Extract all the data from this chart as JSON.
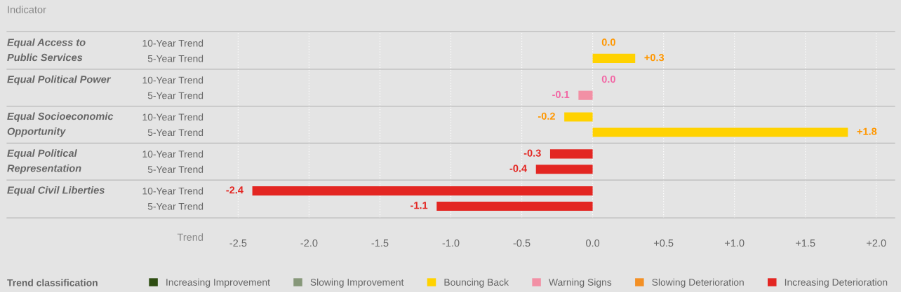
{
  "chart_data": {
    "type": "bar",
    "orientation": "horizontal",
    "xlabel": "Trend",
    "legend_title": "Trend classification",
    "legend": "bottom",
    "categories": [
      "10-Year Trend",
      "5-Year Trend",
      "10-Year Trend",
      "5-Year Trend",
      "10-Year Trend",
      "5-Year Trend",
      "10-Year Trend",
      "5-Year Trend",
      "10-Year Trend",
      "5-Year Trend"
    ],
    "annotations": [
      "Indicator",
      "Equal Access to\nPublic Services",
      "Equal Political Power",
      "Equal Socioeconomic\nOpportunity",
      "Equal Political\nRepresentation",
      "Equal Civil Liberties"
    ],
    "series": [
      {
        "name": "Increasing Improvement",
        "color": "#2e4d12",
        "values": [
          null,
          null,
          null,
          null,
          null,
          null,
          null,
          null,
          null,
          null
        ]
      },
      {
        "name": "Slowing Improvement",
        "color": "#87987a",
        "values": [
          null,
          null,
          null,
          null,
          null,
          null,
          null,
          null,
          null,
          null
        ]
      },
      {
        "name": "Bouncing Back",
        "color": "#ffd200",
        "values": [
          0.0,
          0.3,
          null,
          null,
          -0.2,
          1.8,
          null,
          null,
          null,
          null
        ],
        "value_labels": [
          "0.0",
          "+0.3",
          null,
          null,
          "-0.2",
          "+1.8",
          null,
          null,
          null,
          null
        ]
      },
      {
        "name": "Warning Signs",
        "color": "#f290a5",
        "values": [
          null,
          null,
          0.0,
          -0.1,
          null,
          null,
          null,
          null,
          null,
          null
        ],
        "value_labels": [
          null,
          null,
          "0.0",
          "-0.1",
          null,
          null,
          null,
          null,
          null,
          null
        ]
      },
      {
        "name": "Slowing Deterioration",
        "color": "#f39025",
        "values": [
          null,
          null,
          null,
          null,
          null,
          null,
          null,
          null,
          null,
          null
        ]
      },
      {
        "name": "Increasing Deterioration",
        "color": "#e32622",
        "values": [
          null,
          null,
          null,
          null,
          null,
          null,
          -0.3,
          -0.4,
          -2.4,
          -1.1
        ],
        "value_labels": [
          null,
          null,
          null,
          null,
          null,
          null,
          "-0.3",
          "-0.4",
          "-2.4",
          "-1.1"
        ]
      }
    ],
    "xlim": [
      -4.13,
      2.13
    ],
    "xticks": [
      {
        "value": -2.5,
        "label": "-2.5"
      },
      {
        "value": -2.0,
        "label": "-2.0"
      },
      {
        "value": -1.5,
        "label": "-1.5"
      },
      {
        "value": -1.0,
        "label": "-1.0"
      },
      {
        "value": -0.5,
        "label": "-0.5"
      },
      {
        "value": 0.0,
        "label": "0.0"
      },
      {
        "value": 0.5,
        "label": "+0.5"
      },
      {
        "value": 1.0,
        "label": "+1.0"
      },
      {
        "value": 1.5,
        "label": "+1.5"
      },
      {
        "value": 2.0,
        "label": "+2.0"
      }
    ],
    "grid": "x"
  }
}
